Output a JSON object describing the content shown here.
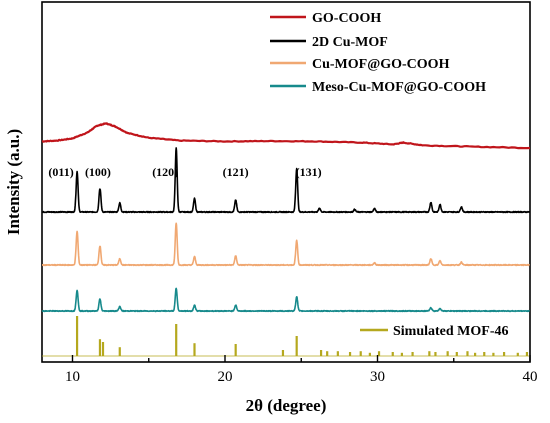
{
  "chart_data": {
    "type": "line",
    "xlabel": "2θ (degree)",
    "ylabel": "Intensity (a.u.)",
    "xlim": [
      8,
      40
    ],
    "x_ticks": [
      10,
      20,
      30,
      40
    ],
    "legend_position": "top-right",
    "series": [
      {
        "name": "GO-COOH",
        "color": "#c0151b",
        "points": [
          [
            8,
            0.55
          ],
          [
            9,
            0.62
          ],
          [
            10,
            0.8
          ],
          [
            11,
            1.3
          ],
          [
            11.6,
            1.85
          ],
          [
            12.2,
            2.05
          ],
          [
            12.8,
            1.8
          ],
          [
            13.6,
            1.25
          ],
          [
            15,
            0.85
          ],
          [
            17,
            0.62
          ],
          [
            20,
            0.55
          ],
          [
            23,
            0.58
          ],
          [
            26,
            0.55
          ],
          [
            29,
            0.45
          ],
          [
            31,
            0.3
          ],
          [
            31.7,
            0.45
          ],
          [
            33,
            0.22
          ],
          [
            36,
            0.12
          ],
          [
            40,
            0.0
          ]
        ]
      },
      {
        "name": "2D Cu-MOF",
        "color": "#000000",
        "peaks": [
          [
            10.3,
            5.4
          ],
          [
            11.8,
            3.1
          ],
          [
            13.1,
            1.2
          ],
          [
            16.8,
            8.5
          ],
          [
            18.0,
            1.8
          ],
          [
            20.7,
            1.6
          ],
          [
            24.7,
            5.8
          ],
          [
            26.2,
            0.5
          ],
          [
            28.5,
            0.35
          ],
          [
            29.8,
            0.45
          ],
          [
            33.5,
            1.3
          ],
          [
            34.1,
            1.0
          ],
          [
            35.5,
            0.7
          ]
        ]
      },
      {
        "name": "Cu-MOF@GO-COOH",
        "color": "#f0a872",
        "peaks": [
          [
            10.3,
            4.8
          ],
          [
            11.8,
            2.7
          ],
          [
            13.1,
            0.9
          ],
          [
            16.8,
            6.0
          ],
          [
            18.0,
            1.2
          ],
          [
            20.7,
            1.3
          ],
          [
            24.7,
            3.5
          ],
          [
            29.8,
            0.3
          ],
          [
            33.5,
            0.9
          ],
          [
            34.1,
            0.6
          ],
          [
            35.5,
            0.4
          ]
        ]
      },
      {
        "name": "Meso-Cu-MOF@GO-COOH",
        "color": "#178a8c",
        "peaks": [
          [
            10.3,
            3.2
          ],
          [
            11.8,
            1.8
          ],
          [
            13.1,
            0.7
          ],
          [
            16.8,
            3.5
          ],
          [
            18.0,
            0.9
          ],
          [
            20.7,
            0.9
          ],
          [
            24.7,
            2.2
          ],
          [
            33.5,
            0.5
          ],
          [
            34.1,
            0.4
          ]
        ]
      }
    ],
    "reference": {
      "name": "Simulated MOF-46",
      "color": "#b5a81e",
      "sticks": [
        [
          10.3,
          1.0
        ],
        [
          11.8,
          0.42
        ],
        [
          12.0,
          0.35
        ],
        [
          13.1,
          0.22
        ],
        [
          16.8,
          0.8
        ],
        [
          18.0,
          0.32
        ],
        [
          20.7,
          0.3
        ],
        [
          23.8,
          0.15
        ],
        [
          24.7,
          0.5
        ],
        [
          26.3,
          0.15
        ],
        [
          26.7,
          0.12
        ],
        [
          27.4,
          0.12
        ],
        [
          28.2,
          0.1
        ],
        [
          28.9,
          0.12
        ],
        [
          29.5,
          0.08
        ],
        [
          30.1,
          0.12
        ],
        [
          31.0,
          0.1
        ],
        [
          31.6,
          0.08
        ],
        [
          32.3,
          0.1
        ],
        [
          33.4,
          0.12
        ],
        [
          33.8,
          0.1
        ],
        [
          34.6,
          0.12
        ],
        [
          35.2,
          0.1
        ],
        [
          35.9,
          0.12
        ],
        [
          36.4,
          0.08
        ],
        [
          37.0,
          0.1
        ],
        [
          37.6,
          0.08
        ],
        [
          38.3,
          0.1
        ],
        [
          39.2,
          0.08
        ],
        [
          39.8,
          0.1
        ]
      ]
    },
    "annotations": [
      {
        "text": "(011)",
        "x": 10.3
      },
      {
        "text": "(100)",
        "x": 11.8
      },
      {
        "text": "(120)",
        "x": 16.8
      },
      {
        "text": "(121)",
        "x": 20.7
      },
      {
        "text": "(131)",
        "x": 24.7
      }
    ]
  }
}
